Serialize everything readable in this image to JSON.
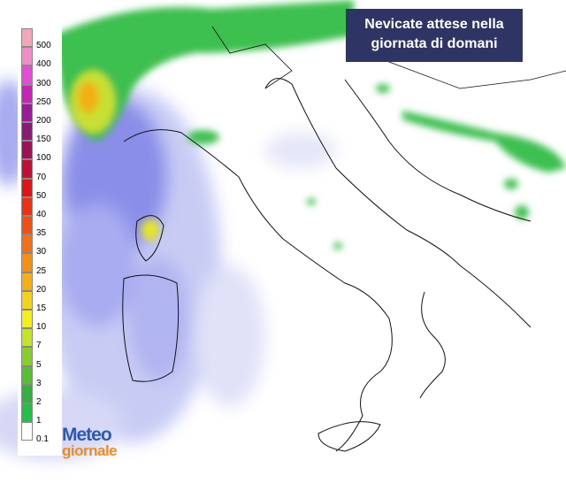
{
  "title_lines": [
    "Nevicate attese nella",
    "giornata di domani"
  ],
  "legend": {
    "items": [
      {
        "label": "500",
        "color": "#f4a6b8"
      },
      {
        "label": "400",
        "color": "#f28cc8"
      },
      {
        "label": "300",
        "color": "#e84ad8"
      },
      {
        "label": "250",
        "color": "#c822b8"
      },
      {
        "label": "200",
        "color": "#a0189a"
      },
      {
        "label": "150",
        "color": "#8c1878"
      },
      {
        "label": "100",
        "color": "#a01058"
      },
      {
        "label": "70",
        "color": "#c01034"
      },
      {
        "label": "50",
        "color": "#e01414"
      },
      {
        "label": "40",
        "color": "#f03012"
      },
      {
        "label": "35",
        "color": "#f25012"
      },
      {
        "label": "30",
        "color": "#f47012"
      },
      {
        "label": "25",
        "color": "#f69012"
      },
      {
        "label": "20",
        "color": "#f6b014"
      },
      {
        "label": "15",
        "color": "#f4d418"
      },
      {
        "label": "10",
        "color": "#f2f018"
      },
      {
        "label": "7",
        "color": "#c4e424"
      },
      {
        "label": "5",
        "color": "#84d028"
      },
      {
        "label": "3",
        "color": "#54c030"
      },
      {
        "label": "2",
        "color": "#34b03c"
      },
      {
        "label": "1",
        "color": "#22c044"
      },
      {
        "label": "0.1",
        "color": "#ffffff"
      }
    ]
  },
  "logo": {
    "line1": "Meteo",
    "line2": "giornale"
  }
}
